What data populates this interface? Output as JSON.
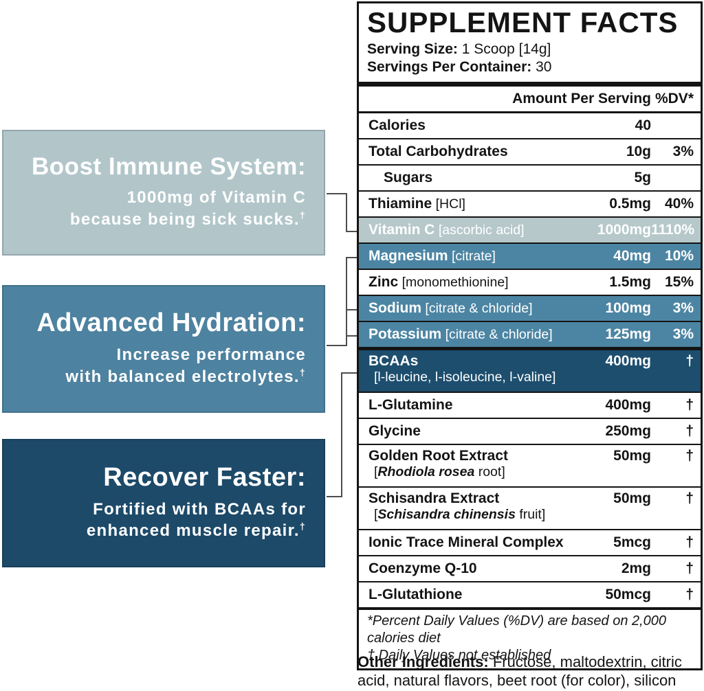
{
  "colors": {
    "highlight_light": "#b6c8ca",
    "highlight_medium": "#4c85a3",
    "highlight_dark": "#1d4e6e",
    "callout_light": "#b2c6ca",
    "callout_medium": "#4d82a0",
    "callout_dark": "#1d4a69",
    "rule": "#141414",
    "connector": "#4d4d4d"
  },
  "callouts": [
    {
      "title": "Boost Immune System:",
      "lines": [
        {
          "text": "1000mg of Vitamin C",
          "sup": ""
        },
        {
          "text": "because being sick sucks.",
          "sup": "†"
        }
      ]
    },
    {
      "title": "Advanced Hydration:",
      "lines": [
        {
          "text": "Increase performance",
          "sup": ""
        },
        {
          "text": "with balanced electrolytes.",
          "sup": "†"
        }
      ]
    },
    {
      "title": "Recover Faster:",
      "lines": [
        {
          "text": "Fortified with BCAAs for",
          "sup": ""
        },
        {
          "text": "enhanced muscle repair.",
          "sup": "†"
        }
      ]
    }
  ],
  "label": {
    "title": "SUPPLEMENT FACTS",
    "serving_size": {
      "label": "Serving Size:",
      "value": "1 Scoop [14g]"
    },
    "servings_per_container": {
      "label": "Servings Per Container:",
      "value": "30"
    },
    "columns": {
      "amount": "Amount Per Serving",
      "dv": "%DV*"
    },
    "rows": [
      {
        "name": "Calories",
        "amount": "40",
        "dv": "",
        "highlight": "",
        "indent": false,
        "thick_before": false
      },
      {
        "name": "Total Carbohydrates",
        "amount": "10g",
        "dv": "3%",
        "highlight": "",
        "indent": false,
        "thick_before": false
      },
      {
        "name": "Sugars",
        "amount": "5g",
        "dv": "",
        "highlight": "",
        "indent": true,
        "thick_before": false
      },
      {
        "name": "Thiamine",
        "detail": "[HCl]",
        "amount": "0.5mg",
        "dv": "40%",
        "highlight": "",
        "indent": false,
        "thick_before": false
      },
      {
        "name": "Vitamin C",
        "detail": "[ascorbic acid]",
        "amount": "1000mg",
        "dv": "1110%",
        "highlight": "light",
        "indent": false,
        "thick_before": false
      },
      {
        "name": "Magnesium",
        "detail": "[citrate]",
        "amount": "40mg",
        "dv": "10%",
        "highlight": "medium",
        "indent": false,
        "thick_before": false
      },
      {
        "name": "Zinc",
        "detail": "[monomethionine]",
        "amount": "1.5mg",
        "dv": "15%",
        "highlight": "",
        "indent": false,
        "thick_before": false
      },
      {
        "name": "Sodium",
        "detail": "[citrate & chloride]",
        "amount": "100mg",
        "dv": "3%",
        "highlight": "medium",
        "indent": false,
        "thick_before": false
      },
      {
        "name": "Potassium",
        "detail": "[citrate & chloride]",
        "amount": "125mg",
        "dv": "3%",
        "highlight": "medium",
        "indent": false,
        "thick_before": false
      },
      {
        "name": "BCAAs",
        "sub": {
          "pre": "[l-leucine, l-isoleucine, l-valine]",
          "em": "",
          "post": ""
        },
        "amount": "400mg",
        "dv": "†",
        "highlight": "dark",
        "indent": false,
        "thick_before": true
      },
      {
        "name": "L-Glutamine",
        "amount": "400mg",
        "dv": "†",
        "highlight": "",
        "indent": false,
        "thick_before": false
      },
      {
        "name": "Glycine",
        "amount": "250mg",
        "dv": "†",
        "highlight": "",
        "indent": false,
        "thick_before": false
      },
      {
        "name": "Golden Root Extract",
        "sub": {
          "pre": "[",
          "em": "Rhodiola rosea",
          "post": " root]"
        },
        "amount": "50mg",
        "dv": "†",
        "highlight": "",
        "indent": false,
        "thick_before": false
      },
      {
        "name": "Schisandra Extract",
        "sub": {
          "pre": "[",
          "em": "Schisandra chinensis",
          "post": " fruit]"
        },
        "amount": "50mg",
        "dv": "†",
        "highlight": "",
        "indent": false,
        "thick_before": false
      },
      {
        "name": "Ionic Trace Mineral Complex",
        "amount": "5mcg",
        "dv": "†",
        "highlight": "",
        "indent": false,
        "thick_before": false
      },
      {
        "name": "Coenzyme Q-10",
        "amount": "2mg",
        "dv": "†",
        "highlight": "",
        "indent": false,
        "thick_before": false
      },
      {
        "name": "L-Glutathione",
        "amount": "50mcg",
        "dv": "†",
        "highlight": "",
        "indent": false,
        "thick_before": false
      }
    ],
    "footnotes": [
      "*Percent Daily Values (%DV) are based on 2,000 calories diet",
      "† Daily Values not established"
    ]
  },
  "other_ingredients": {
    "label": "Other Ingredients:",
    "value": "Fructose, maltodextrin, citric acid, natural flavors, beet root (for color), silicon dioxide, sucralose."
  }
}
